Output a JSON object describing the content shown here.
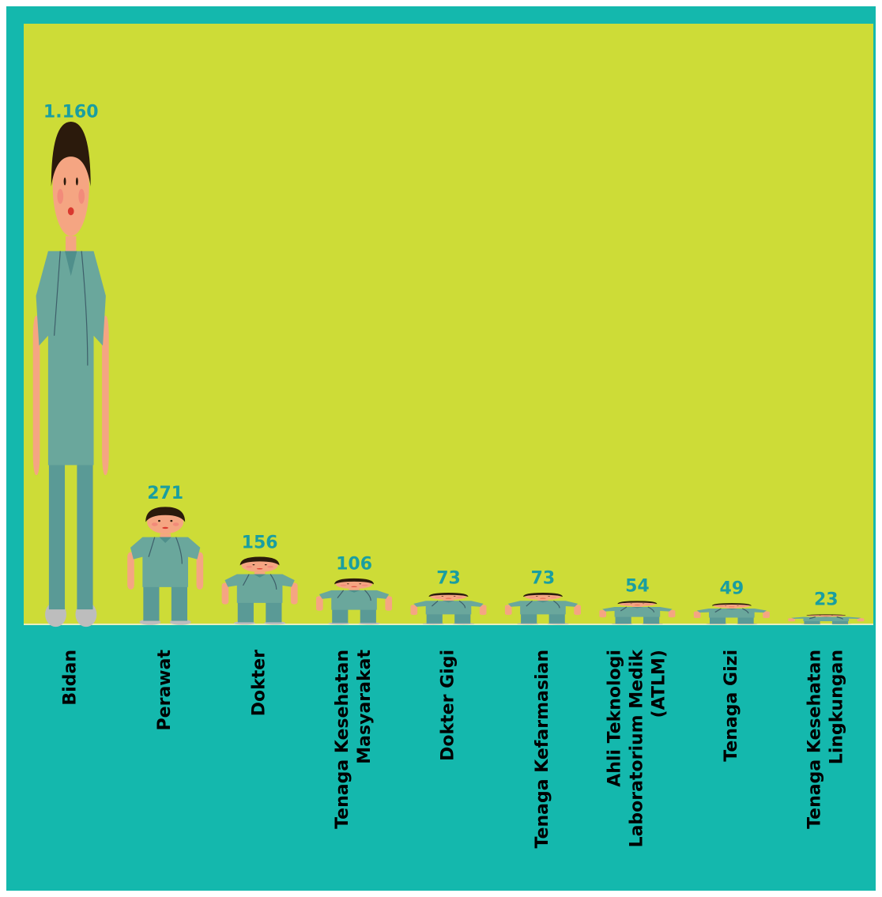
{
  "chart_data": {
    "type": "pictograph",
    "categories": [
      [
        "Bidan"
      ],
      [
        "Perawat"
      ],
      [
        "Dokter"
      ],
      [
        "Tenaga Kesehatan",
        "Masyarakat"
      ],
      [
        "Dokter Gigi"
      ],
      [
        "Tenaga Kefarmasian"
      ],
      [
        "Ahli Teknologi",
        "Laboratorium Medik",
        "(ATLM)"
      ],
      [
        "Tenaga Gizi"
      ],
      [
        "Tenaga Kesehatan",
        "Lingkungan"
      ]
    ],
    "values": [
      1160,
      271,
      156,
      106,
      73,
      73,
      54,
      49,
      23
    ],
    "value_labels": [
      "1.160",
      "271",
      "156",
      "106",
      "73",
      "73",
      "54",
      "49",
      "23"
    ],
    "ylim": [
      0,
      1400
    ],
    "color": "#6aa79c"
  }
}
